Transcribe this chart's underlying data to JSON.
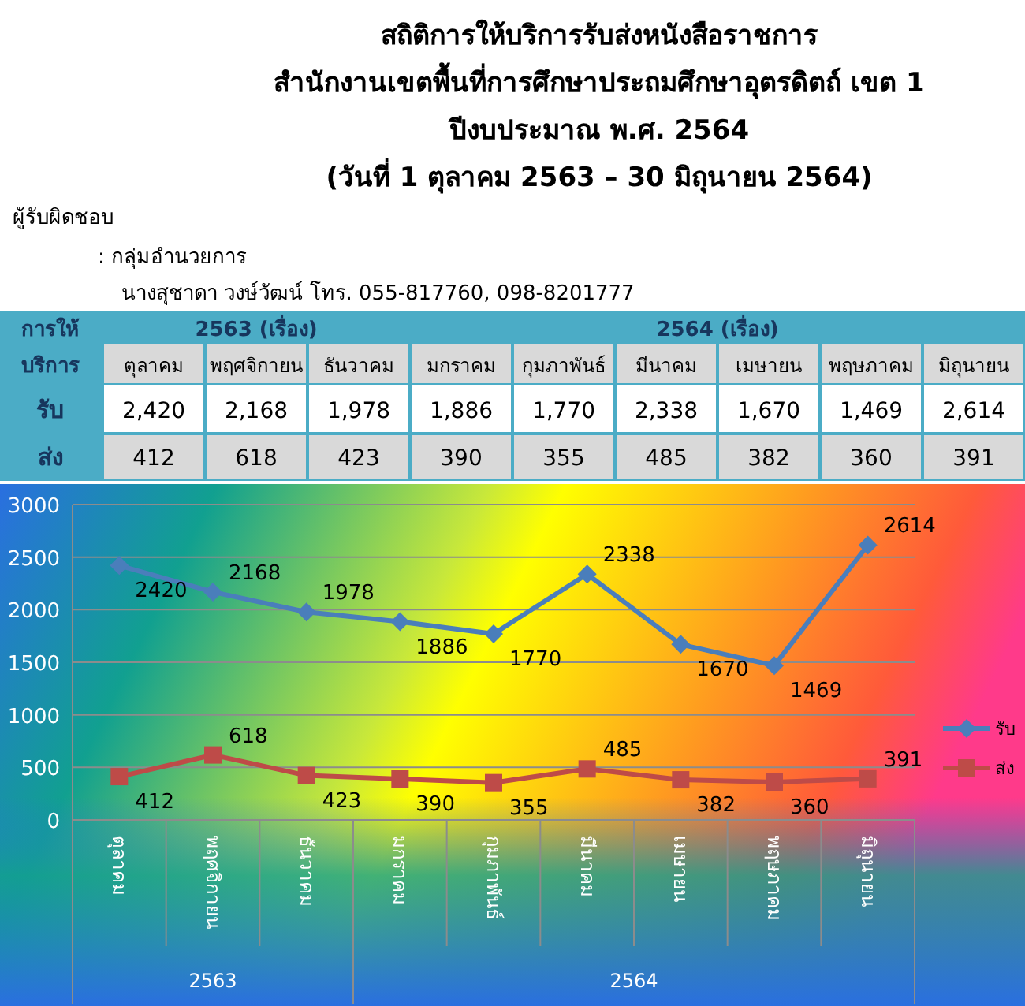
{
  "chart_data": {
    "type": "line",
    "title": "สถิติการให้บริการรับส่งหนังสือราชการ",
    "subtitle": "สำนักงานเขตพื้นที่การศึกษาประถมศึกษาอุตรดิตถ์ เขต 1\nปีงบประมาณ พ.ศ. 2564\n(วันที่ 1 ตุลาคม 2563 – 30 มิถุนายน 2564)",
    "annotations": [
      "ผู้รับผิดชอบ",
      ":  กลุ่มอำนวยการ",
      "นางสุชาดา วงษ์วัฒน์  โทร. 055-817760, 098-8201777",
      "การให้บริการ",
      "2563 (เรื่อง)",
      "2564 (เรื่อง)",
      "2563",
      "2564",
      "2,420",
      "2,168",
      "1,978",
      "1,886",
      "1,770",
      "2,338",
      "1,670",
      "1,469",
      "2,614",
      "412",
      "618",
      "423",
      "390",
      "355",
      "485",
      "382",
      "360",
      "391"
    ],
    "categories": [
      "ตุลาคม",
      "พฤศจิกายน",
      "ธันวาคม",
      "มกราคม",
      "กุมภาพันธ์",
      "มีนาคม",
      "เมษายน",
      "พฤษภาคม",
      "มิถุนายน"
    ],
    "series": [
      {
        "name": "รับ",
        "color": "#4a7ebb",
        "marker": "diamond",
        "values": [
          2420,
          2168,
          1978,
          1886,
          1770,
          2338,
          1670,
          1469,
          2614
        ]
      },
      {
        "name": "ส่ง",
        "color": "#be4b48",
        "marker": "square",
        "values": [
          412,
          618,
          423,
          390,
          355,
          485,
          382,
          360,
          391
        ]
      }
    ],
    "ylim": [
      0,
      3000
    ],
    "yticks": [
      0,
      500,
      1000,
      1500,
      2000,
      2500,
      3000
    ],
    "grid": "y",
    "legend": "right",
    "data_labels": true,
    "line_style": "solid"
  }
}
